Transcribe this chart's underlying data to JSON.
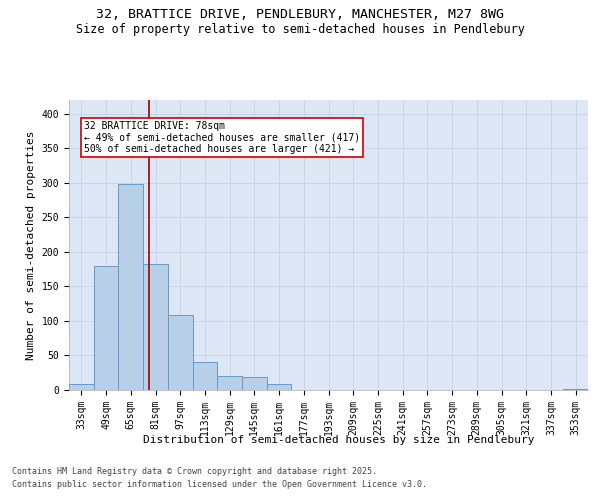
{
  "title_line1": "32, BRATTICE DRIVE, PENDLEBURY, MANCHESTER, M27 8WG",
  "title_line2": "Size of property relative to semi-detached houses in Pendlebury",
  "xlabel": "Distribution of semi-detached houses by size in Pendlebury",
  "ylabel": "Number of semi-detached properties",
  "categories": [
    "33sqm",
    "49sqm",
    "65sqm",
    "81sqm",
    "97sqm",
    "113sqm",
    "129sqm",
    "145sqm",
    "161sqm",
    "177sqm",
    "193sqm",
    "209sqm",
    "225sqm",
    "241sqm",
    "257sqm",
    "273sqm",
    "289sqm",
    "305sqm",
    "321sqm",
    "337sqm",
    "353sqm"
  ],
  "values": [
    8,
    180,
    299,
    183,
    108,
    41,
    20,
    19,
    8,
    0,
    0,
    0,
    0,
    0,
    0,
    0,
    0,
    0,
    0,
    0,
    2
  ],
  "bar_color": "#b8cfe8",
  "bar_edge_color": "#6699cc",
  "annotation_text": "32 BRATTICE DRIVE: 78sqm\n← 49% of semi-detached houses are smaller (417)\n50% of semi-detached houses are larger (421) →",
  "vline_color": "#990000",
  "vline_x": 2.75,
  "annotation_box_color": "#cc0000",
  "ylim": [
    0,
    420
  ],
  "yticks": [
    0,
    50,
    100,
    150,
    200,
    250,
    300,
    350,
    400
  ],
  "grid_color": "#c8d4e8",
  "bg_color": "#dce6f5",
  "footer_line1": "Contains HM Land Registry data © Crown copyright and database right 2025.",
  "footer_line2": "Contains public sector information licensed under the Open Government Licence v3.0.",
  "title_fontsize": 9.5,
  "subtitle_fontsize": 8.5,
  "axis_label_fontsize": 8,
  "tick_fontsize": 7,
  "annotation_fontsize": 7,
  "footer_fontsize": 6
}
